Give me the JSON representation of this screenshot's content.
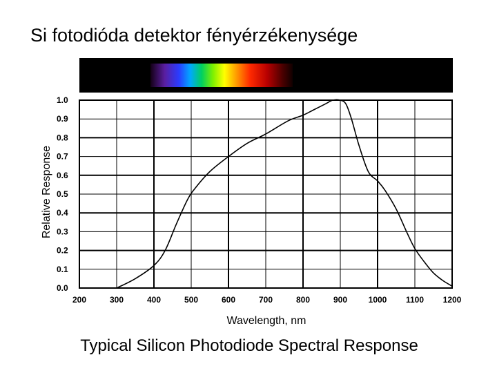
{
  "slide": {
    "title": "Si fotodióda detektor fényérzékenysége"
  },
  "chart_data": {
    "type": "line",
    "title": "Typical Silicon Photodiode Spectral Response",
    "xlabel": "Wavelength, nm",
    "ylabel": "Relative Response",
    "xlim": [
      200,
      1200
    ],
    "ylim": [
      0.0,
      1.0
    ],
    "x_ticks": [
      "200",
      "300",
      "400",
      "500",
      "600",
      "700",
      "800",
      "900",
      "1000",
      "1100",
      "1200"
    ],
    "y_ticks": [
      "0.0",
      "0.1",
      "0.2",
      "0.3",
      "0.4",
      "0.5",
      "0.6",
      "0.7",
      "0.8",
      "0.9",
      "1.0"
    ],
    "grid": true,
    "spectrum_band": true,
    "colors": {
      "line": "#000000",
      "grid": "#000000",
      "band_background": "#000000"
    },
    "series": [
      {
        "x": [
          300,
          350,
          400,
          430,
          460,
          490,
          510,
          550,
          600,
          650,
          700,
          760,
          800,
          830,
          860,
          880,
          900,
          915,
          930,
          950,
          975,
          1000,
          1020,
          1050,
          1080,
          1100,
          1125,
          1150,
          1175,
          1200
        ],
        "y": [
          0.0,
          0.05,
          0.12,
          0.2,
          0.34,
          0.47,
          0.53,
          0.62,
          0.7,
          0.77,
          0.82,
          0.89,
          0.92,
          0.95,
          0.98,
          1.0,
          1.0,
          0.98,
          0.9,
          0.76,
          0.62,
          0.57,
          0.52,
          0.42,
          0.29,
          0.21,
          0.14,
          0.08,
          0.04,
          0.01
        ]
      }
    ]
  }
}
